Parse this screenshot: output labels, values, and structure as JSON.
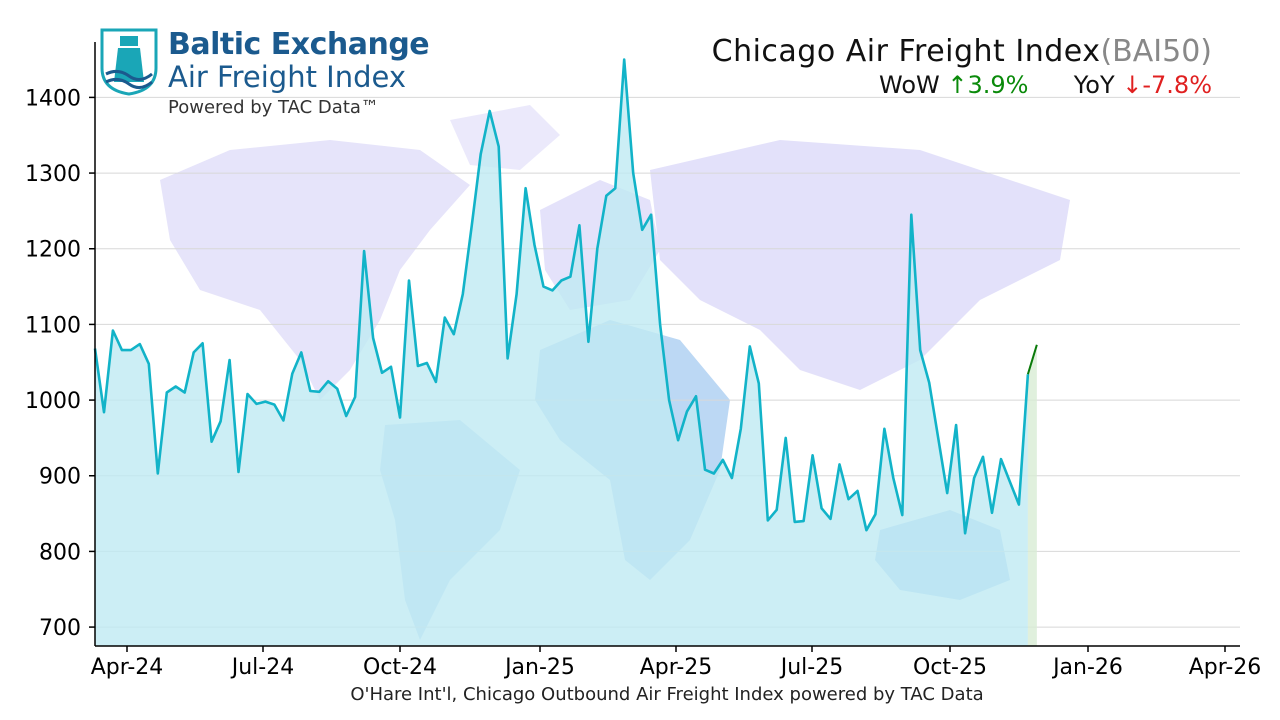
{
  "header": {
    "brand_line1": "Baltic Exchange",
    "brand_line2": "Air Freight Index",
    "brand_line3": "Powered by TAC Data™",
    "title": "Chicago Air Freight Index",
    "code": "(BAI50)",
    "wow_label": "WoW",
    "wow_arrow": "↑",
    "wow_value": "3.9%",
    "yoy_label": "YoY",
    "yoy_arrow": "↓",
    "yoy_value": "-7.8%"
  },
  "footer": {
    "caption": "O'Hare Int'l, Chicago Outbound Air Freight Index powered by TAC Data"
  },
  "colors": {
    "line": "#12b3c8",
    "fill": "#bfeaf2",
    "latest_line": "#0a7a0a",
    "latest_fill": "#d8ecd4",
    "grid": "#d8d8d8",
    "brand": "#1b5a8e",
    "up": "#0a8a0a",
    "down": "#e02020"
  },
  "chart_data": {
    "type": "area",
    "y_ticks": [
      700,
      800,
      900,
      1000,
      1100,
      1200,
      1300,
      1400
    ],
    "x_ticks": [
      "Apr-24",
      "Jul-24",
      "Oct-24",
      "Jan-25",
      "Apr-25",
      "Jul-25",
      "Oct-25",
      "Jan-26",
      "Apr-26"
    ],
    "ylim": [
      675,
      1460
    ],
    "grid": "horizontal",
    "series": [
      {
        "values": [
          1068,
          984,
          1092,
          1066,
          1066,
          1074,
          1048,
          903,
          1010,
          1018,
          1010,
          1063,
          1075,
          945,
          972,
          1053,
          905,
          1008,
          995,
          998,
          994,
          973,
          1035,
          1063,
          1012,
          1011,
          1025,
          1015,
          979,
          1004,
          1197,
          1082,
          1036,
          1044,
          977,
          1158,
          1045,
          1049,
          1024,
          1109,
          1087,
          1140,
          1230,
          1325,
          1382,
          1335,
          1055,
          1140,
          1280,
          1205,
          1150,
          1145,
          1158,
          1163,
          1231,
          1077,
          1200,
          1270,
          1280,
          1450,
          1300,
          1225,
          1245,
          1100,
          1000,
          947,
          985,
          1005,
          908,
          903,
          921,
          897,
          962,
          1071,
          1022,
          841,
          855,
          950,
          839,
          840,
          927,
          857,
          843,
          915,
          869,
          880,
          828,
          849,
          962,
          897,
          848,
          1245,
          1066,
          1023,
          950,
          877,
          967,
          824,
          897,
          925,
          851,
          922,
          892,
          862,
          1034
        ]
      },
      {
        "values": [
          1034,
          1073
        ]
      }
    ]
  }
}
